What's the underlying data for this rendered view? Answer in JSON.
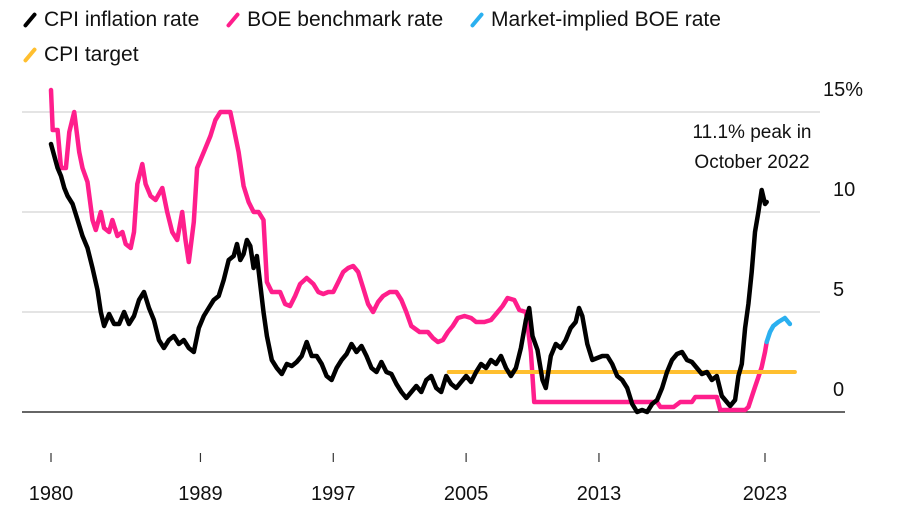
{
  "chart_data": {
    "type": "line",
    "title": "",
    "xlabel": "",
    "ylabel": "",
    "xlim": [
      1980,
      2025.5
    ],
    "ylim": [
      -0.5,
      15.5
    ],
    "grid": true,
    "legend_position": "top-left",
    "x_ticks": [
      1980,
      1989,
      1997,
      2005,
      2013,
      2023
    ],
    "x_tick_labels": [
      "1980",
      "1989",
      "1997",
      "2005",
      "2013",
      "2023"
    ],
    "y_ticks": [
      0,
      5,
      10,
      15
    ],
    "y_tick_labels": [
      "0",
      "5",
      "10",
      "15%"
    ],
    "annotation": {
      "lines": [
        "11.1% peak in",
        "October 2022"
      ],
      "x": 2022.8,
      "y": 11.1
    },
    "series": [
      {
        "name": "CPI inflation rate",
        "color": "#000000",
        "points": [
          [
            1980.0,
            13.4
          ],
          [
            1980.2,
            12.8
          ],
          [
            1980.4,
            12.2
          ],
          [
            1980.6,
            11.8
          ],
          [
            1980.8,
            11.2
          ],
          [
            1981.0,
            10.8
          ],
          [
            1981.3,
            10.4
          ],
          [
            1981.6,
            9.6
          ],
          [
            1981.9,
            8.8
          ],
          [
            1982.2,
            8.2
          ],
          [
            1982.5,
            7.2
          ],
          [
            1982.8,
            6.1
          ],
          [
            1983.0,
            5.0
          ],
          [
            1983.2,
            4.3
          ],
          [
            1983.5,
            4.9
          ],
          [
            1983.8,
            4.4
          ],
          [
            1984.1,
            4.4
          ],
          [
            1984.4,
            5.0
          ],
          [
            1984.7,
            4.4
          ],
          [
            1985.0,
            4.8
          ],
          [
            1985.3,
            5.6
          ],
          [
            1985.6,
            6.0
          ],
          [
            1985.9,
            5.2
          ],
          [
            1986.2,
            4.6
          ],
          [
            1986.5,
            3.6
          ],
          [
            1986.8,
            3.2
          ],
          [
            1987.1,
            3.6
          ],
          [
            1987.4,
            3.8
          ],
          [
            1987.7,
            3.4
          ],
          [
            1988.0,
            3.6
          ],
          [
            1988.3,
            3.2
          ],
          [
            1988.6,
            3.0
          ],
          [
            1988.9,
            4.2
          ],
          [
            1989.2,
            4.8
          ],
          [
            1989.5,
            5.2
          ],
          [
            1989.8,
            5.6
          ],
          [
            1990.1,
            5.8
          ],
          [
            1990.4,
            6.6
          ],
          [
            1990.7,
            7.6
          ],
          [
            1991.0,
            7.8
          ],
          [
            1991.2,
            8.4
          ],
          [
            1991.4,
            7.6
          ],
          [
            1991.6,
            7.9
          ],
          [
            1991.8,
            8.6
          ],
          [
            1992.0,
            8.3
          ],
          [
            1992.2,
            7.2
          ],
          [
            1992.4,
            7.8
          ],
          [
            1992.6,
            6.4
          ],
          [
            1992.8,
            5.0
          ],
          [
            1993.0,
            3.8
          ],
          [
            1993.3,
            2.6
          ],
          [
            1993.6,
            2.2
          ],
          [
            1993.9,
            1.9
          ],
          [
            1994.2,
            2.4
          ],
          [
            1994.5,
            2.3
          ],
          [
            1994.8,
            2.5
          ],
          [
            1995.1,
            2.8
          ],
          [
            1995.4,
            3.5
          ],
          [
            1995.7,
            2.8
          ],
          [
            1996.0,
            2.8
          ],
          [
            1996.3,
            2.4
          ],
          [
            1996.6,
            1.8
          ],
          [
            1996.9,
            1.6
          ],
          [
            1997.2,
            2.2
          ],
          [
            1997.5,
            2.6
          ],
          [
            1997.8,
            2.9
          ],
          [
            1998.1,
            3.4
          ],
          [
            1998.4,
            3.0
          ],
          [
            1998.7,
            3.3
          ],
          [
            1999.0,
            2.8
          ],
          [
            1999.3,
            2.2
          ],
          [
            1999.6,
            2.0
          ],
          [
            1999.9,
            2.5
          ],
          [
            2000.2,
            2.0
          ],
          [
            2000.5,
            1.9
          ],
          [
            2000.8,
            1.4
          ],
          [
            2001.1,
            1.0
          ],
          [
            2001.4,
            0.7
          ],
          [
            2001.7,
            1.0
          ],
          [
            2002.0,
            1.3
          ],
          [
            2002.3,
            1.0
          ],
          [
            2002.6,
            1.6
          ],
          [
            2002.9,
            1.8
          ],
          [
            2003.2,
            1.2
          ],
          [
            2003.5,
            1.0
          ],
          [
            2003.8,
            1.8
          ],
          [
            2004.1,
            1.4
          ],
          [
            2004.4,
            1.2
          ],
          [
            2004.7,
            1.5
          ],
          [
            2005.0,
            1.8
          ],
          [
            2005.3,
            1.5
          ],
          [
            2005.6,
            2.0
          ],
          [
            2005.9,
            2.4
          ],
          [
            2006.2,
            2.2
          ],
          [
            2006.5,
            2.6
          ],
          [
            2006.8,
            2.4
          ],
          [
            2007.1,
            2.8
          ],
          [
            2007.4,
            2.2
          ],
          [
            2007.7,
            1.8
          ],
          [
            2008.0,
            2.2
          ],
          [
            2008.3,
            3.2
          ],
          [
            2008.6,
            4.6
          ],
          [
            2008.8,
            5.2
          ],
          [
            2009.0,
            3.8
          ],
          [
            2009.3,
            3.1
          ],
          [
            2009.6,
            1.6
          ],
          [
            2009.8,
            1.2
          ],
          [
            2010.1,
            2.8
          ],
          [
            2010.4,
            3.4
          ],
          [
            2010.7,
            3.2
          ],
          [
            2011.0,
            3.6
          ],
          [
            2011.3,
            4.2
          ],
          [
            2011.6,
            4.5
          ],
          [
            2011.8,
            5.2
          ],
          [
            2012.0,
            4.8
          ],
          [
            2012.3,
            3.4
          ],
          [
            2012.6,
            2.6
          ],
          [
            2012.9,
            2.7
          ],
          [
            2013.2,
            2.8
          ],
          [
            2013.5,
            2.8
          ],
          [
            2013.8,
            2.4
          ],
          [
            2014.1,
            1.8
          ],
          [
            2014.4,
            1.6
          ],
          [
            2014.7,
            1.2
          ],
          [
            2015.0,
            0.4
          ],
          [
            2015.3,
            0.0
          ],
          [
            2015.6,
            0.1
          ],
          [
            2015.9,
            0.0
          ],
          [
            2016.2,
            0.4
          ],
          [
            2016.5,
            0.6
          ],
          [
            2016.8,
            1.2
          ],
          [
            2017.1,
            2.0
          ],
          [
            2017.4,
            2.6
          ],
          [
            2017.7,
            2.9
          ],
          [
            2018.0,
            3.0
          ],
          [
            2018.3,
            2.6
          ],
          [
            2018.6,
            2.5
          ],
          [
            2018.9,
            2.2
          ],
          [
            2019.2,
            1.9
          ],
          [
            2019.5,
            2.0
          ],
          [
            2019.8,
            1.6
          ],
          [
            2020.1,
            1.8
          ],
          [
            2020.4,
            0.8
          ],
          [
            2020.7,
            0.5
          ],
          [
            2020.9,
            0.3
          ],
          [
            2021.2,
            0.6
          ],
          [
            2021.4,
            1.8
          ],
          [
            2021.6,
            2.4
          ],
          [
            2021.8,
            4.2
          ],
          [
            2022.0,
            5.4
          ],
          [
            2022.2,
            7.0
          ],
          [
            2022.4,
            9.0
          ],
          [
            2022.6,
            10.0
          ],
          [
            2022.8,
            11.1
          ],
          [
            2023.0,
            10.4
          ],
          [
            2023.1,
            10.5
          ]
        ]
      },
      {
        "name": "BOE benchmark rate",
        "color": "#ff1e8c",
        "points": [
          [
            1980.0,
            16.1
          ],
          [
            1980.1,
            14.1
          ],
          [
            1980.4,
            14.1
          ],
          [
            1980.6,
            12.2
          ],
          [
            1980.9,
            12.2
          ],
          [
            1981.1,
            14.0
          ],
          [
            1981.4,
            15.0
          ],
          [
            1981.7,
            13.0
          ],
          [
            1981.9,
            12.2
          ],
          [
            1982.2,
            11.5
          ],
          [
            1982.5,
            9.6
          ],
          [
            1982.7,
            9.1
          ],
          [
            1983.0,
            10.0
          ],
          [
            1983.2,
            9.2
          ],
          [
            1983.5,
            9.0
          ],
          [
            1983.7,
            9.6
          ],
          [
            1984.0,
            8.8
          ],
          [
            1984.3,
            9.0
          ],
          [
            1984.5,
            8.4
          ],
          [
            1984.8,
            8.2
          ],
          [
            1985.0,
            9.0
          ],
          [
            1985.2,
            11.4
          ],
          [
            1985.5,
            12.4
          ],
          [
            1985.7,
            11.4
          ],
          [
            1986.0,
            10.8
          ],
          [
            1986.3,
            10.6
          ],
          [
            1986.7,
            11.2
          ],
          [
            1987.0,
            10.0
          ],
          [
            1987.3,
            9.0
          ],
          [
            1987.6,
            8.6
          ],
          [
            1987.9,
            10.0
          ],
          [
            1988.1,
            8.6
          ],
          [
            1988.3,
            7.5
          ],
          [
            1988.6,
            9.5
          ],
          [
            1988.8,
            12.2
          ],
          [
            1989.2,
            13.0
          ],
          [
            1989.6,
            13.8
          ],
          [
            1989.9,
            14.6
          ],
          [
            1990.2,
            15.0
          ],
          [
            1990.8,
            15.0
          ],
          [
            1991.0,
            14.2
          ],
          [
            1991.3,
            13.0
          ],
          [
            1991.6,
            11.3
          ],
          [
            1991.9,
            10.5
          ],
          [
            1992.2,
            10.0
          ],
          [
            1992.5,
            10.0
          ],
          [
            1992.8,
            9.6
          ],
          [
            1993.0,
            6.5
          ],
          [
            1993.3,
            6.0
          ],
          [
            1993.8,
            6.0
          ],
          [
            1994.1,
            5.4
          ],
          [
            1994.4,
            5.3
          ],
          [
            1994.7,
            5.8
          ],
          [
            1995.0,
            6.4
          ],
          [
            1995.4,
            6.7
          ],
          [
            1995.8,
            6.4
          ],
          [
            1996.1,
            6.0
          ],
          [
            1996.4,
            5.9
          ],
          [
            1996.7,
            6.0
          ],
          [
            1997.0,
            6.0
          ],
          [
            1997.3,
            6.5
          ],
          [
            1997.6,
            7.0
          ],
          [
            1997.9,
            7.2
          ],
          [
            1998.2,
            7.3
          ],
          [
            1998.5,
            7.0
          ],
          [
            1998.8,
            6.2
          ],
          [
            1999.1,
            5.4
          ],
          [
            1999.4,
            5.0
          ],
          [
            1999.7,
            5.5
          ],
          [
            2000.0,
            5.8
          ],
          [
            2000.4,
            6.0
          ],
          [
            2000.8,
            6.0
          ],
          [
            2001.1,
            5.6
          ],
          [
            2001.4,
            5.0
          ],
          [
            2001.7,
            4.3
          ],
          [
            2002.2,
            4.0
          ],
          [
            2002.7,
            4.0
          ],
          [
            2003.0,
            3.7
          ],
          [
            2003.3,
            3.5
          ],
          [
            2003.6,
            3.6
          ],
          [
            2003.9,
            4.0
          ],
          [
            2004.2,
            4.3
          ],
          [
            2004.5,
            4.7
          ],
          [
            2004.9,
            4.8
          ],
          [
            2005.3,
            4.7
          ],
          [
            2005.6,
            4.5
          ],
          [
            2006.1,
            4.5
          ],
          [
            2006.5,
            4.6
          ],
          [
            2006.9,
            5.0
          ],
          [
            2007.2,
            5.3
          ],
          [
            2007.5,
            5.7
          ],
          [
            2007.9,
            5.6
          ],
          [
            2008.2,
            5.1
          ],
          [
            2008.6,
            5.0
          ],
          [
            2008.9,
            3.0
          ],
          [
            2009.1,
            0.5
          ],
          [
            2009.5,
            0.5
          ],
          [
            2012.0,
            0.5
          ],
          [
            2015.0,
            0.5
          ],
          [
            2016.5,
            0.5
          ],
          [
            2016.7,
            0.25
          ],
          [
            2017.5,
            0.25
          ],
          [
            2017.9,
            0.5
          ],
          [
            2018.6,
            0.5
          ],
          [
            2018.8,
            0.75
          ],
          [
            2020.1,
            0.75
          ],
          [
            2020.3,
            0.1
          ],
          [
            2021.8,
            0.1
          ],
          [
            2022.0,
            0.25
          ],
          [
            2022.2,
            0.75
          ],
          [
            2022.4,
            1.25
          ],
          [
            2022.6,
            1.75
          ],
          [
            2022.8,
            2.25
          ],
          [
            2023.0,
            3.0
          ],
          [
            2023.1,
            3.5
          ]
        ]
      },
      {
        "name": "Market-implied BOE rate",
        "color": "#2bb0f0",
        "points": [
          [
            2023.1,
            3.5
          ],
          [
            2023.3,
            4.0
          ],
          [
            2023.5,
            4.3
          ],
          [
            2023.8,
            4.5
          ],
          [
            2024.0,
            4.6
          ],
          [
            2024.2,
            4.7
          ],
          [
            2024.4,
            4.5
          ],
          [
            2024.5,
            4.4
          ]
        ]
      },
      {
        "name": "CPI target",
        "color": "#ffbf2f",
        "points": [
          [
            2003.95,
            2.0
          ],
          [
            2024.8,
            2.0
          ]
        ]
      }
    ]
  }
}
